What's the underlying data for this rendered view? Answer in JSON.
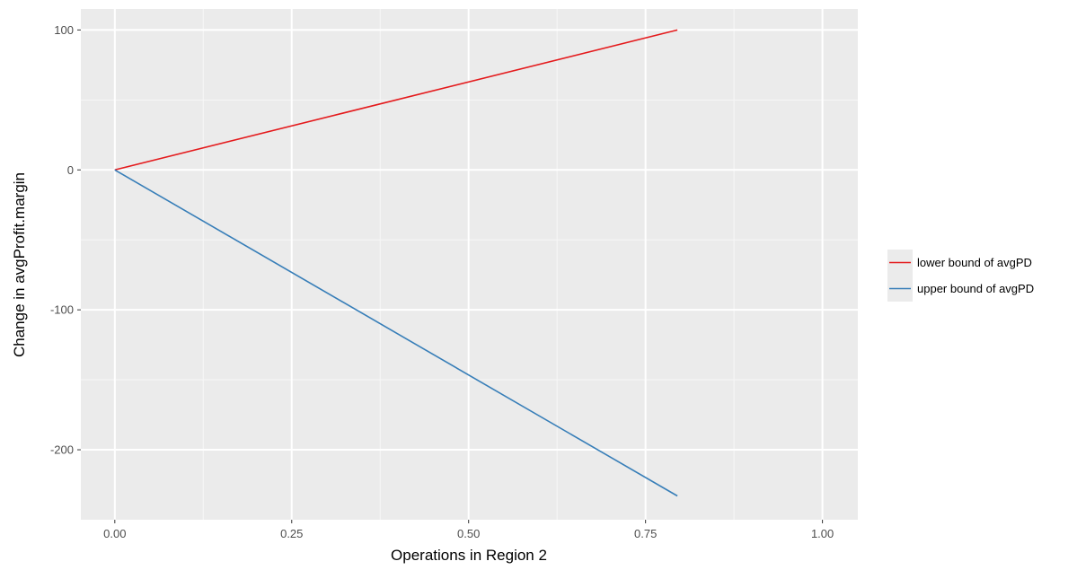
{
  "chart_data": {
    "type": "line",
    "title": "",
    "xlabel": "Operations in Region 2",
    "ylabel": "Change in avgProfit.margin",
    "xlim": [
      -0.048,
      1.05
    ],
    "ylim": [
      -250,
      115
    ],
    "x_ticks": [
      0.0,
      0.25,
      0.5,
      0.75,
      1.0
    ],
    "x_tick_labels": [
      "0.00",
      "0.25",
      "0.50",
      "0.75",
      "1.00"
    ],
    "y_ticks": [
      100,
      0,
      -100,
      -200
    ],
    "y_tick_labels": [
      "100",
      "0",
      "-100",
      "-200"
    ],
    "grid": true,
    "legend_position": "right",
    "series": [
      {
        "name": "lower bound of avgPD",
        "color": "#e41a1c",
        "x": [
          0.0,
          0.795
        ],
        "y": [
          0,
          100
        ]
      },
      {
        "name": "upper bound of avgPD",
        "color": "#377eb8",
        "x": [
          0.0,
          0.795
        ],
        "y": [
          0,
          -233
        ]
      }
    ]
  }
}
